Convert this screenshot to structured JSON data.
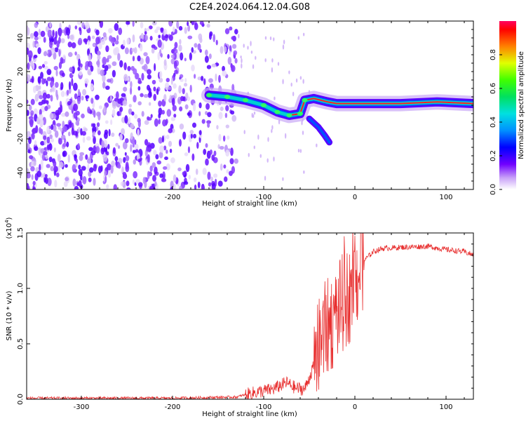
{
  "title": "C2E4.2024.064.12.04.G08",
  "colorbar": {
    "label": "Normalized spectral amplitude",
    "ticks": [
      "0.0",
      "0.2",
      "0.4",
      "0.6",
      "0.8"
    ],
    "range": [
      0,
      1
    ]
  },
  "chart_data": [
    {
      "type": "heatmap",
      "xlabel": "Height of straight line (km)",
      "ylabel": "Frequency (Hz)",
      "xlim": [
        -360,
        130
      ],
      "ylim": [
        -50,
        50
      ],
      "xticks": [
        "-300",
        "-200",
        "-100",
        "0",
        "100"
      ],
      "yticks": [
        "-40",
        "-20",
        "0",
        "20",
        "40"
      ],
      "ridge": [
        {
          "x": -160,
          "y": 6
        },
        {
          "x": -140,
          "y": 5
        },
        {
          "x": -120,
          "y": 3
        },
        {
          "x": -100,
          "y": 0
        },
        {
          "x": -85,
          "y": -4
        },
        {
          "x": -72,
          "y": -6
        },
        {
          "x": -60,
          "y": -5
        },
        {
          "x": -55,
          "y": 3
        },
        {
          "x": -45,
          "y": 4
        },
        {
          "x": -30,
          "y": 2
        },
        {
          "x": -20,
          "y": 1
        },
        {
          "x": 0,
          "y": 1
        },
        {
          "x": 50,
          "y": 1
        },
        {
          "x": 90,
          "y": 2
        },
        {
          "x": 130,
          "y": 1
        }
      ],
      "branch": [
        {
          "x": -50,
          "y": -8
        },
        {
          "x": -40,
          "y": -13
        },
        {
          "x": -33,
          "y": -18
        },
        {
          "x": -28,
          "y": -22
        }
      ]
    },
    {
      "type": "line",
      "xlabel": "Height of straight line (km)",
      "ylabel": "SNR (10 * v/v)",
      "scale_label": "(x10",
      "scale_exp": "4",
      "scale_close": ")",
      "xlim": [
        -360,
        130
      ],
      "ylim": [
        0,
        1.5
      ],
      "xticks": [
        "-300",
        "-200",
        "-100",
        "0",
        "100"
      ],
      "yticks": [
        "0.0",
        "0.5",
        "1.0",
        "1.5"
      ],
      "series": [
        {
          "x": [
            -360,
            -300,
            -200,
            -130,
            -110,
            -90,
            -75,
            -65,
            -55,
            -45,
            -40,
            -35,
            -30,
            -25,
            -20,
            -15,
            -10,
            -5,
            0,
            10,
            20,
            30,
            50,
            80,
            100,
            120,
            130
          ],
          "y": [
            0.01,
            0.01,
            0.01,
            0.02,
            0.06,
            0.09,
            0.15,
            0.1,
            0.09,
            0.3,
            0.45,
            0.6,
            0.65,
            0.7,
            0.78,
            0.85,
            0.9,
            0.95,
            1.05,
            1.25,
            1.33,
            1.36,
            1.37,
            1.38,
            1.35,
            1.33,
            1.3
          ]
        }
      ]
    }
  ]
}
